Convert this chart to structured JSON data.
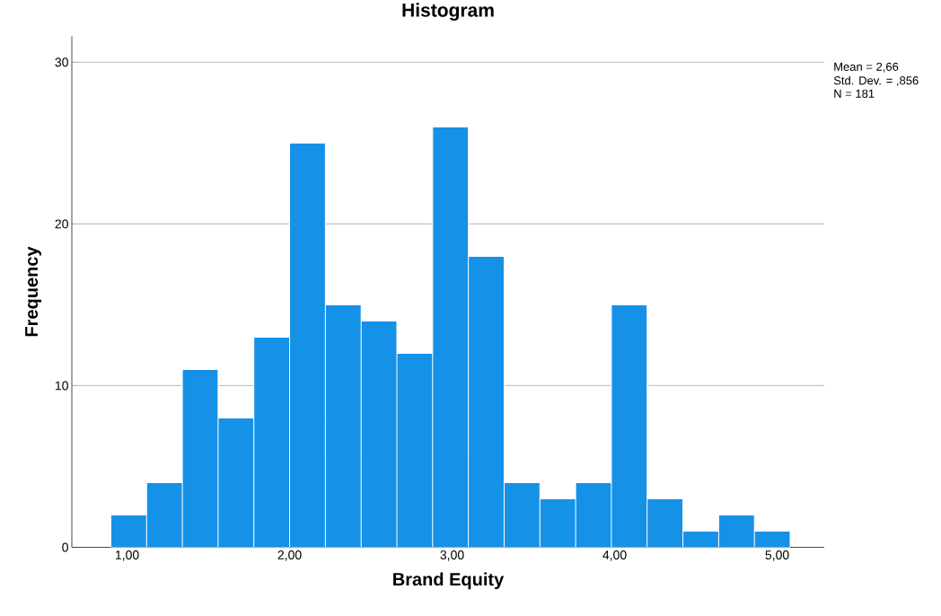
{
  "chart_data": {
    "type": "histogram",
    "title": "Histogram",
    "xlabel": "Brand Equity",
    "ylabel": "Frequency",
    "bins": [
      0.9,
      1.12,
      1.34,
      1.56,
      1.78,
      2.0,
      2.22,
      2.44,
      2.66,
      2.88,
      3.1,
      3.32,
      3.54,
      3.76,
      3.98,
      4.2,
      4.42,
      4.64,
      4.86,
      5.08
    ],
    "values": [
      2,
      4,
      11,
      8,
      13,
      25,
      15,
      14,
      12,
      26,
      18,
      4,
      3,
      4,
      15,
      3,
      1,
      2,
      1
    ],
    "color": "#1591e8",
    "xlim": [
      0.66,
      5.29
    ],
    "ylim": [
      0,
      31.6
    ],
    "xticks": [
      {
        "value": 1,
        "label": "1,00"
      },
      {
        "value": 2,
        "label": "2,00"
      },
      {
        "value": 3,
        "label": "3,00"
      },
      {
        "value": 4,
        "label": "4,00"
      },
      {
        "value": 5,
        "label": "5,00"
      }
    ],
    "yticks": [
      0,
      10,
      20,
      30
    ],
    "grid": "y",
    "annotations": [
      "Mean = 2,66",
      "Std. Dev. = ,856",
      "N = 181"
    ]
  }
}
